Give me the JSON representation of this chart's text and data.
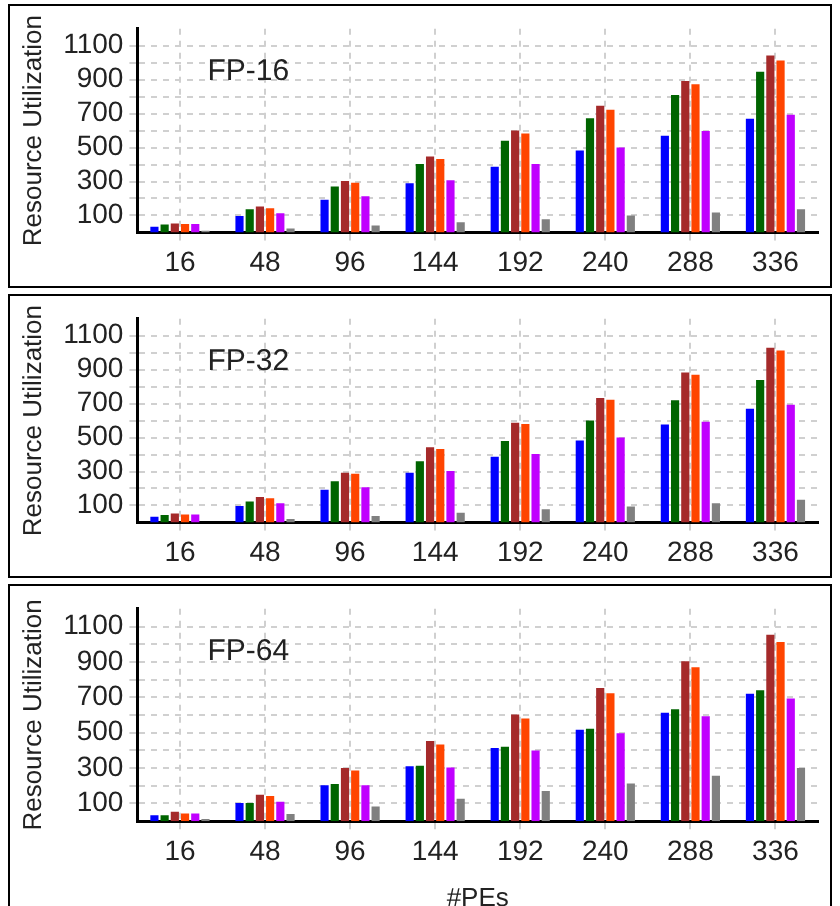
{
  "chart_data": [
    {
      "type": "bar",
      "ylabel": "Resource Utilization",
      "annotations": [
        "FP-16"
      ],
      "grid": true,
      "categories": [
        "16",
        "48",
        "96",
        "144",
        "192",
        "240",
        "288",
        "336"
      ],
      "ylim": [
        0,
        1200
      ],
      "yticks": [
        100,
        {
          "value": 200,
          "label": null
        },
        300,
        {
          "value": 400,
          "label": null
        },
        500,
        {
          "value": 600,
          "label": null
        },
        700,
        {
          "value": 800,
          "label": null
        },
        900,
        {
          "value": 1000,
          "label": null
        },
        1100
      ],
      "series": [
        {
          "color": "#0000ff",
          "values": [
            33,
            97,
            193,
            290,
            387,
            483,
            570,
            670
          ]
        },
        {
          "color": "#006400",
          "values": [
            47,
            137,
            270,
            403,
            540,
            673,
            810,
            947
          ]
        },
        {
          "color": "#a52a2a",
          "values": [
            53,
            153,
            303,
            447,
            600,
            747,
            893,
            1043
          ]
        },
        {
          "color": "#ff4500",
          "values": [
            50,
            143,
            293,
            433,
            583,
            723,
            873,
            1013
          ]
        },
        {
          "color": "#c000ff",
          "values": [
            50,
            113,
            213,
            307,
            403,
            500,
            597,
            693
          ]
        },
        {
          "color": "#808080",
          "values": [
            10,
            23,
            40,
            60,
            77,
            100,
            117,
            137
          ]
        }
      ]
    },
    {
      "type": "bar",
      "ylabel": "Resource Utilization",
      "annotations": [
        "FP-32"
      ],
      "grid": true,
      "categories": [
        "16",
        "48",
        "96",
        "144",
        "192",
        "240",
        "288",
        "336"
      ],
      "ylim": [
        0,
        1200
      ],
      "yticks": [
        100,
        {
          "value": 200,
          "label": null
        },
        300,
        {
          "value": 400,
          "label": null
        },
        500,
        {
          "value": 600,
          "label": null
        },
        700,
        {
          "value": 800,
          "label": null
        },
        900,
        {
          "value": 1000,
          "label": null
        },
        1100
      ],
      "series": [
        {
          "color": "#0000ff",
          "values": [
            33,
            97,
            193,
            293,
            387,
            483,
            577,
            670
          ]
        },
        {
          "color": "#006400",
          "values": [
            43,
            123,
            243,
            360,
            480,
            600,
            720,
            840
          ]
        },
        {
          "color": "#a52a2a",
          "values": [
            53,
            150,
            293,
            443,
            587,
            733,
            883,
            1030
          ]
        },
        {
          "color": "#ff4500",
          "values": [
            47,
            143,
            287,
            433,
            580,
            723,
            870,
            1013
          ]
        },
        {
          "color": "#c000ff",
          "values": [
            47,
            113,
            207,
            303,
            403,
            500,
            593,
            693
          ]
        },
        {
          "color": "#808080",
          "values": [
            null,
            20,
            37,
            57,
            77,
            93,
            113,
            133
          ]
        }
      ]
    },
    {
      "type": "bar",
      "ylabel": "Resource Utilization",
      "xlabel": "#PEs",
      "annotations": [
        "FP-64"
      ],
      "grid": true,
      "categories": [
        "16",
        "48",
        "96",
        "144",
        "192",
        "240",
        "288",
        "336"
      ],
      "ylim": [
        0,
        1200
      ],
      "yticks": [
        100,
        {
          "value": 200,
          "label": null
        },
        300,
        {
          "value": 400,
          "label": null
        },
        500,
        {
          "value": 600,
          "label": null
        },
        700,
        {
          "value": 800,
          "label": null
        },
        900,
        {
          "value": 1000,
          "label": null
        },
        1100
      ],
      "series": [
        {
          "color": "#0000ff",
          "values": [
            33,
            103,
            203,
            310,
            413,
            517,
            613,
            720
          ]
        },
        {
          "color": "#006400",
          "values": [
            33,
            103,
            210,
            313,
            420,
            523,
            633,
            740
          ]
        },
        {
          "color": "#a52a2a",
          "values": [
            53,
            150,
            300,
            453,
            603,
            753,
            903,
            1053
          ]
        },
        {
          "color": "#ff4500",
          "values": [
            43,
            143,
            287,
            433,
            580,
            723,
            870,
            1013
          ]
        },
        {
          "color": "#c000ff",
          "values": [
            43,
            110,
            203,
            303,
            400,
            497,
            593,
            693
          ]
        },
        {
          "color": "#808080",
          "values": [
            13,
            40,
            83,
            127,
            170,
            213,
            257,
            300
          ]
        }
      ]
    }
  ]
}
